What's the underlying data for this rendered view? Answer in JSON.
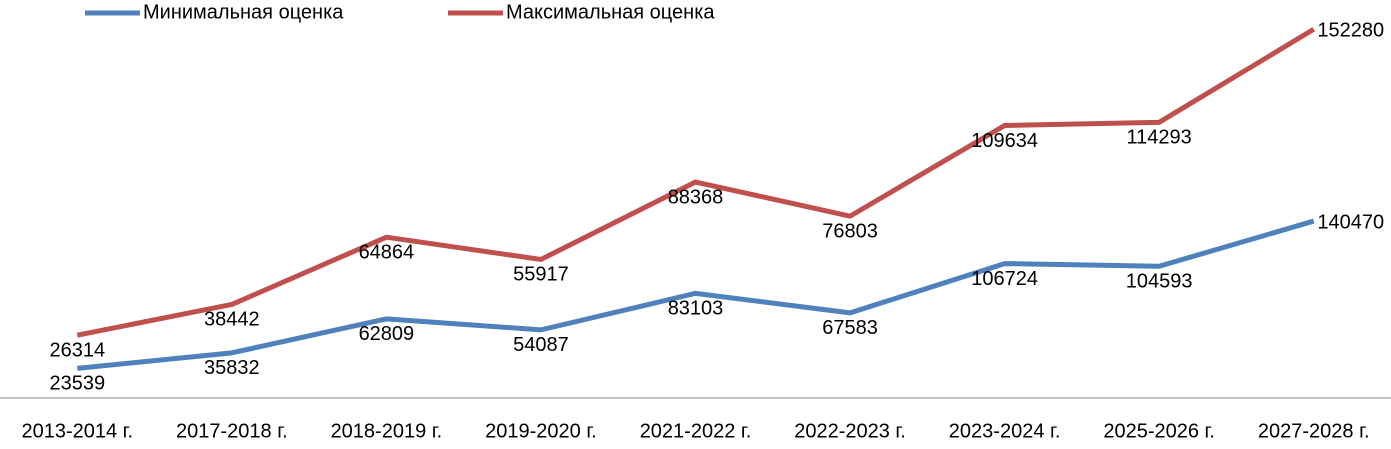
{
  "chart_data": {
    "type": "line",
    "stacked": true,
    "categories": [
      "2013-2014 г.",
      "2017-2018 г.",
      "2018-2019 г.",
      "2019-2020 г.",
      "2021-2022 г.",
      "2022-2023 г.",
      "2023-2024 г.",
      "2025-2026 г.",
      "2027-2028 г."
    ],
    "series": [
      {
        "name": "Минимальная оценка",
        "color": "#4f81bd",
        "values": [
          23539,
          35832,
          62809,
          54087,
          83103,
          67583,
          106724,
          104593,
          140470
        ]
      },
      {
        "name": "Максимальная оценка",
        "color": "#c0504d",
        "values": [
          26314,
          38442,
          64864,
          55917,
          88368,
          76803,
          109634,
          114293,
          152280
        ]
      }
    ],
    "ylim": [
      0,
      316000
    ],
    "legend": "top"
  }
}
